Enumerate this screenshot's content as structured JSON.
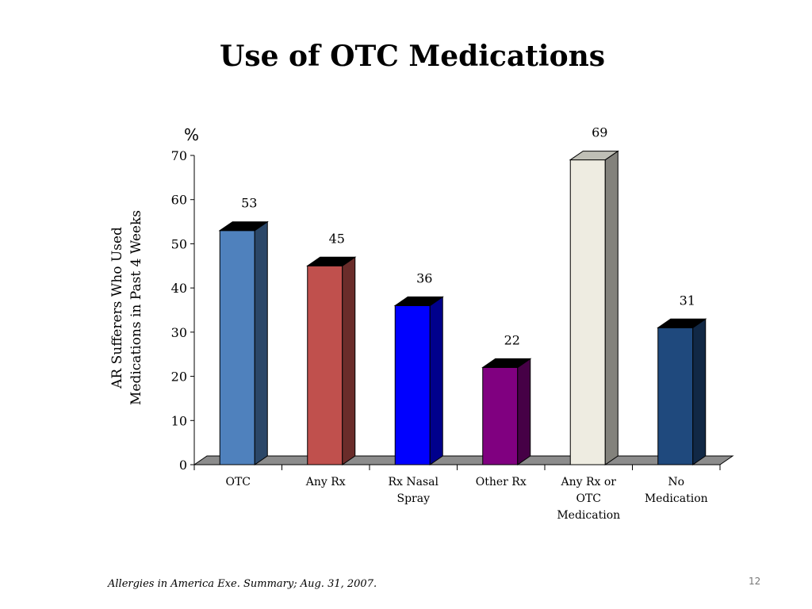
{
  "slide": {
    "title": "Use of OTC Medications",
    "footnote": "Allergies in America Exe. Summary; Aug. 31, 2007.",
    "page_number": "12"
  },
  "chart_data": {
    "type": "bar",
    "title": "Use of OTC Medications",
    "ylabel_lines": [
      "AR Sufferers Who Used",
      "Medications in Past 4 Weeks"
    ],
    "unit_label": "%",
    "xlabel": "",
    "categories": [
      [
        "OTC"
      ],
      [
        "Any Rx"
      ],
      [
        "Rx Nasal",
        "Spray"
      ],
      [
        "Other Rx"
      ],
      [
        "Any Rx or",
        "OTC",
        "Medication"
      ],
      [
        "No",
        "Medication"
      ]
    ],
    "values": [
      53,
      45,
      36,
      22,
      69,
      31
    ],
    "data_labels": [
      "53",
      "45",
      "36",
      "22",
      "69",
      "31"
    ],
    "bar_colors": [
      "#4F81BD",
      "#C0504D",
      "#0000FF",
      "#800080",
      "#EEECE1",
      "#1F497D"
    ],
    "ylim": [
      0,
      70
    ],
    "yticks": [
      0,
      10,
      20,
      30,
      40,
      50,
      60,
      70
    ],
    "grid": false,
    "legend": "none",
    "style": "3d-bar"
  }
}
